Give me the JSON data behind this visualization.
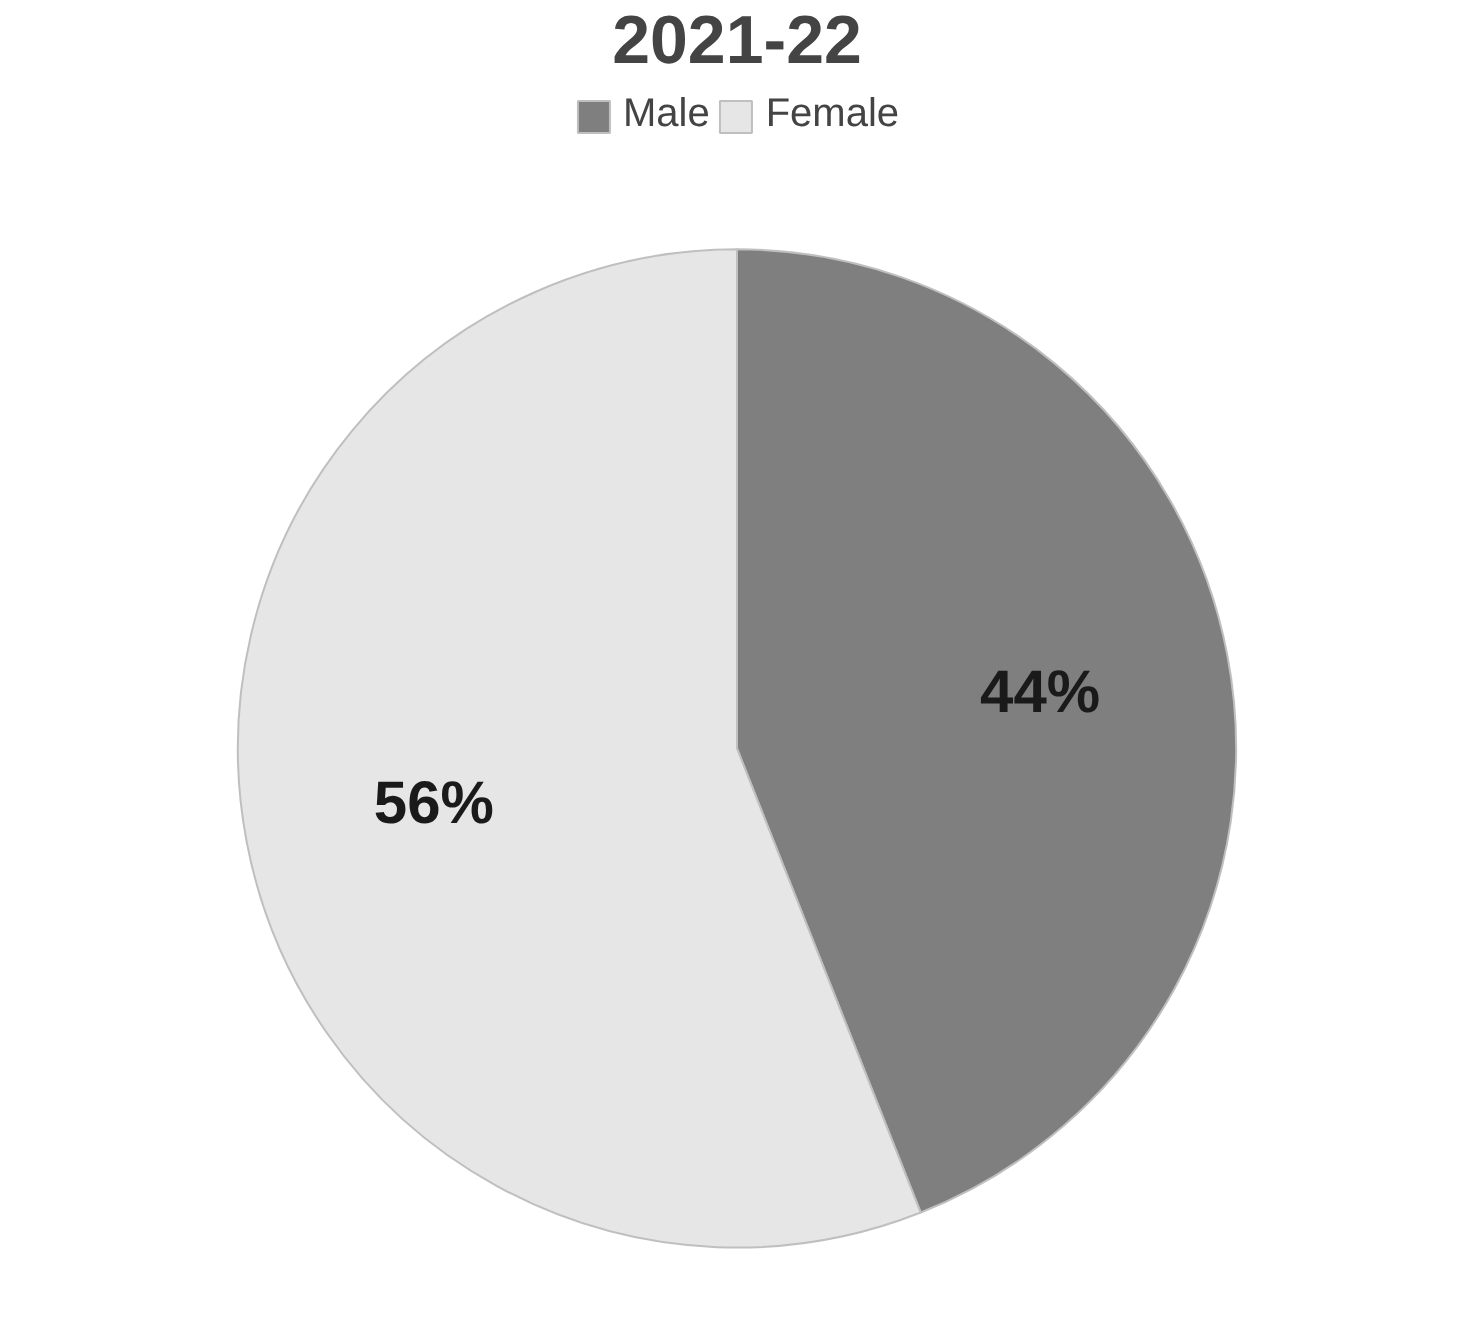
{
  "chart_data": {
    "type": "pie",
    "title": "2021-22",
    "categories": [
      "Male",
      "Female"
    ],
    "values": [
      44,
      56
    ],
    "colors": [
      "#7f7f7f",
      "#e6e6e6"
    ],
    "value_labels": [
      "44%",
      "56%"
    ],
    "legend": "top"
  }
}
